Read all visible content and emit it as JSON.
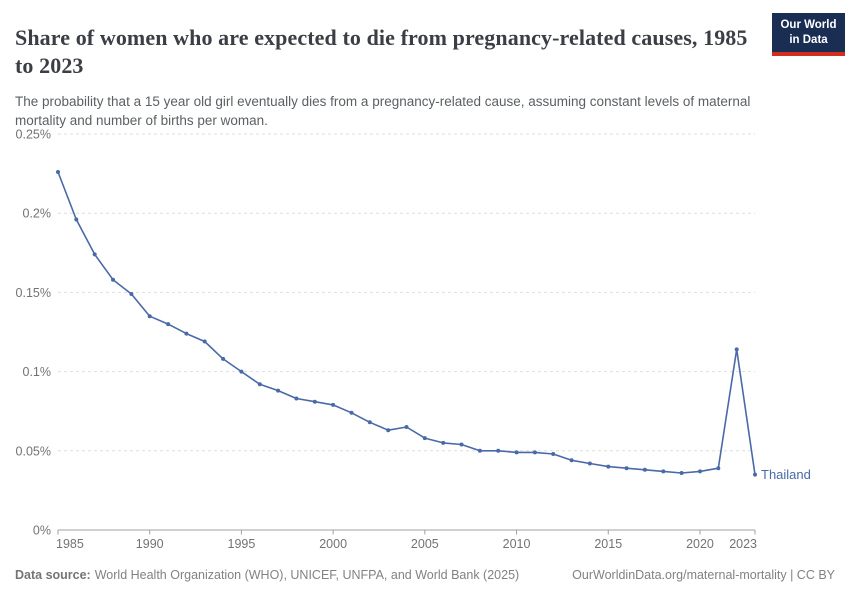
{
  "header": {
    "title": "Share of women who are expected to die from pregnancy-related causes, 1985 to 2023",
    "subtitle": "The probability that a 15 year old girl eventually dies from a pregnancy-related cause, assuming constant levels of maternal mortality and number of births per woman."
  },
  "logo": {
    "line1": "Our World",
    "line2": "in Data",
    "bg_color": "#1a2e54",
    "accent_color": "#d02e1e"
  },
  "chart_data": {
    "type": "line",
    "title": "Share of women who are expected to die from pregnancy-related causes, 1985 to 2023",
    "xlabel": "",
    "ylabel": "",
    "units": "%",
    "x_range": [
      1985,
      2023
    ],
    "ylim": [
      0,
      0.25
    ],
    "grid": "horizontal-dashed",
    "legend_position": "end-of-line-label",
    "y_ticks": [
      {
        "value": 0,
        "label": "0%"
      },
      {
        "value": 0.05,
        "label": "0.05%"
      },
      {
        "value": 0.1,
        "label": "0.1%"
      },
      {
        "value": 0.15,
        "label": "0.15%"
      },
      {
        "value": 0.2,
        "label": "0.2%"
      },
      {
        "value": 0.25,
        "label": "0.25%"
      }
    ],
    "x_ticks": [
      {
        "year": 1985,
        "label": "1985"
      },
      {
        "year": 1990,
        "label": "1990"
      },
      {
        "year": 1995,
        "label": "1995"
      },
      {
        "year": 2000,
        "label": "2000"
      },
      {
        "year": 2005,
        "label": "2005"
      },
      {
        "year": 2010,
        "label": "2010"
      },
      {
        "year": 2015,
        "label": "2015"
      },
      {
        "year": 2020,
        "label": "2020"
      },
      {
        "year": 2023,
        "label": "2023"
      }
    ],
    "series": [
      {
        "name": "Thailand",
        "color": "#4a69a8",
        "years": [
          1985,
          1986,
          1987,
          1988,
          1989,
          1990,
          1991,
          1992,
          1993,
          1994,
          1995,
          1996,
          1997,
          1998,
          1999,
          2000,
          2001,
          2002,
          2003,
          2004,
          2005,
          2006,
          2007,
          2008,
          2009,
          2010,
          2011,
          2012,
          2013,
          2014,
          2015,
          2016,
          2017,
          2018,
          2019,
          2020,
          2021,
          2022,
          2023
        ],
        "values": [
          0.226,
          0.196,
          0.174,
          0.158,
          0.149,
          0.135,
          0.13,
          0.124,
          0.119,
          0.108,
          0.1,
          0.092,
          0.088,
          0.083,
          0.081,
          0.079,
          0.074,
          0.068,
          0.063,
          0.065,
          0.058,
          0.055,
          0.054,
          0.05,
          0.05,
          0.049,
          0.049,
          0.048,
          0.044,
          0.042,
          0.04,
          0.039,
          0.038,
          0.037,
          0.036,
          0.037,
          0.039,
          0.114,
          0.035
        ]
      }
    ],
    "colors": {
      "gridline": "#dedede",
      "axis": "#a0a0a0",
      "tick_label": "#737373"
    }
  },
  "footer": {
    "source_label": "Data source:",
    "source_text": "World Health Organization (WHO), UNICEF, UNFPA, and World Bank (2025)",
    "link_text": "OurWorldinData.org/maternal-mortality | CC BY"
  }
}
